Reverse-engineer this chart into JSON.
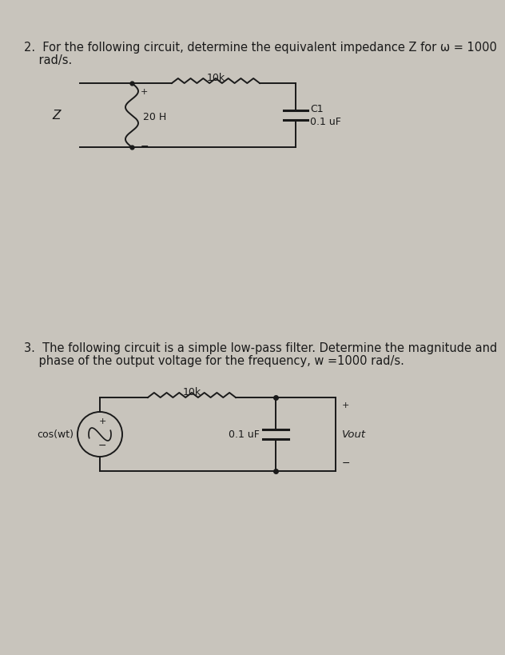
{
  "bg_color": "#c8c4bc",
  "text_color": "#1a1a1a",
  "font_size_text": 10.5,
  "font_size_labels": 9.0,
  "q2_line1": "2.  For the following circuit, determine the equivalent impedance Z for ω = 1000",
  "q2_line2": "    rad/s.",
  "q3_line1": "3.  The following circuit is a simple low-pass filter. Determine the magnitude and",
  "q3_line2": "    phase of the output voltage for the frequency, w =1000 rad/s."
}
